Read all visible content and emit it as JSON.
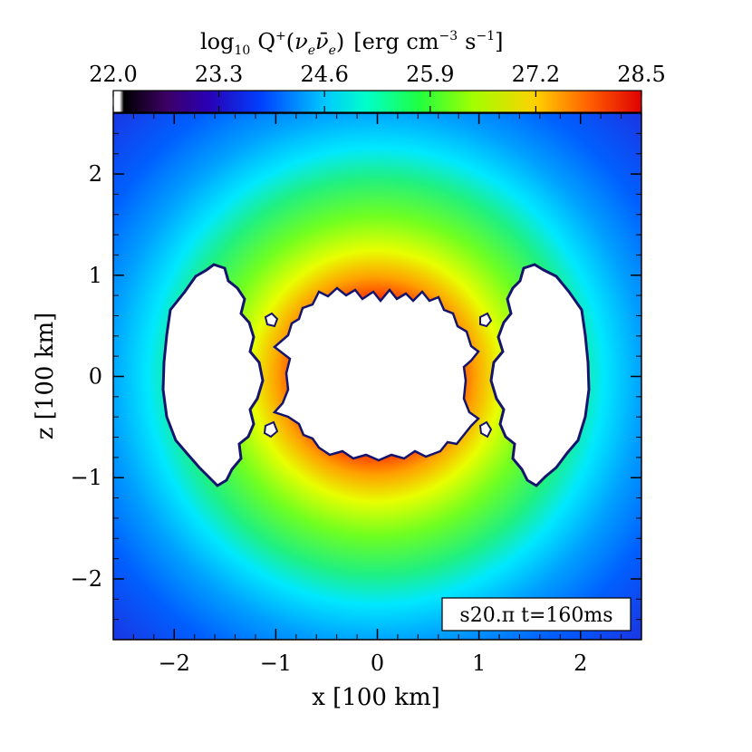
{
  "chart_data": {
    "type": "heatmap",
    "colorbar": {
      "title_main": "log",
      "title_sub": "10",
      "title_Q": "Q",
      "title_sup": "+",
      "title_open": "(",
      "title_nu1": "ν",
      "title_sub_e1": "e",
      "title_nu2": "ν̄",
      "title_sub_e2": "e",
      "title_close": ")",
      "title_units_pre": "[erg cm",
      "title_units_exp1": "−3",
      "title_units_mid": "s",
      "title_units_exp2": "−1",
      "title_units_post": "]",
      "ticks": [
        "22.0",
        "23.3",
        "24.6",
        "25.9",
        "27.2",
        "28.5"
      ],
      "range": [
        22.0,
        28.5
      ],
      "colormap": [
        "#ffffff",
        "#000000",
        "#4a006a",
        "#1a00c8",
        "#0050ff",
        "#00c8ff",
        "#00ffaa",
        "#40ff00",
        "#c8ff00",
        "#ffc000",
        "#ff4000",
        "#e00000"
      ]
    },
    "xlabel": "x [100 km]",
    "ylabel": "z [100 km]",
    "xlim": [
      -2.6,
      2.6
    ],
    "ylim": [
      -2.6,
      2.6
    ],
    "xticks": [
      -2,
      -1,
      0,
      1,
      2
    ],
    "yticks": [
      -2,
      -1,
      0,
      1,
      2
    ],
    "xtick_labels": [
      "−2",
      "−1",
      "0",
      "1",
      "2"
    ],
    "ytick_labels": [
      "−2",
      "−1",
      "0",
      "1",
      "2"
    ],
    "annotation": "s20.π  t=160ms",
    "field": {
      "peak_value": 28.5,
      "peak_radius": 0.85,
      "outer_value": 23.2,
      "center_white_region": "inner core (no data)",
      "side_white_regions": "two lobes near x=±1.7"
    }
  }
}
